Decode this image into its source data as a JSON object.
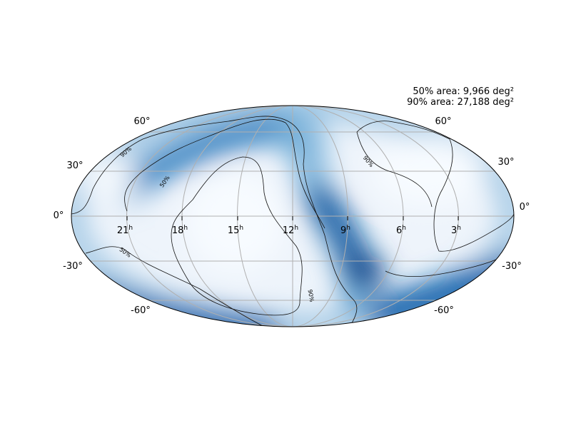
{
  "map": {
    "annotations": [
      "50% area: 9,966 deg²",
      "90% area: 27,188 deg²"
    ],
    "ra_labels": [
      {
        "hours": "21",
        "sup": "h"
      },
      {
        "hours": "18",
        "sup": "h"
      },
      {
        "hours": "15",
        "sup": "h"
      },
      {
        "hours": "12",
        "sup": "h"
      },
      {
        "hours": "9",
        "sup": "h"
      },
      {
        "hours": "6",
        "sup": "h"
      },
      {
        "hours": "3",
        "sup": "h"
      }
    ],
    "dec_labels_left": [
      "60°",
      "30°",
      "0°",
      "-30°",
      "-60°"
    ],
    "dec_labels_right": [
      "60°",
      "30°",
      "0°",
      "-30°",
      "-60°"
    ],
    "contour_labels": [
      "90%",
      "50%",
      "50%",
      "90%",
      "90%"
    ]
  }
}
